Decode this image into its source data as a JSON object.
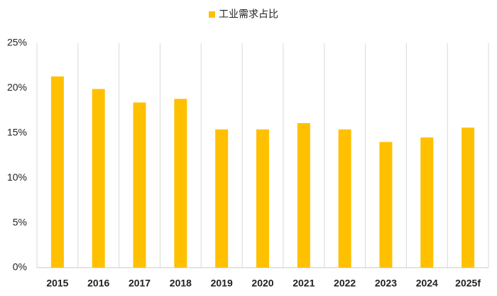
{
  "chart_data": {
    "type": "bar",
    "categories": [
      "2015",
      "2016",
      "2017",
      "2018",
      "2019",
      "2020",
      "2021",
      "2022",
      "2023",
      "2024",
      "2025f"
    ],
    "series": [
      {
        "name": "工业需求占比",
        "color": "#ffc000",
        "values": [
          21.3,
          19.9,
          18.4,
          18.8,
          15.4,
          15.4,
          16.1,
          15.4,
          14.0,
          14.5,
          15.6
        ]
      }
    ],
    "ylim": [
      0,
      25
    ],
    "yticks": [
      {
        "value": 0,
        "label": "0%"
      },
      {
        "value": 5,
        "label": "5%"
      },
      {
        "value": 10,
        "label": "10%"
      },
      {
        "value": 15,
        "label": "15%"
      },
      {
        "value": 20,
        "label": "20%"
      },
      {
        "value": 25,
        "label": "25%"
      }
    ],
    "legend": "top"
  }
}
